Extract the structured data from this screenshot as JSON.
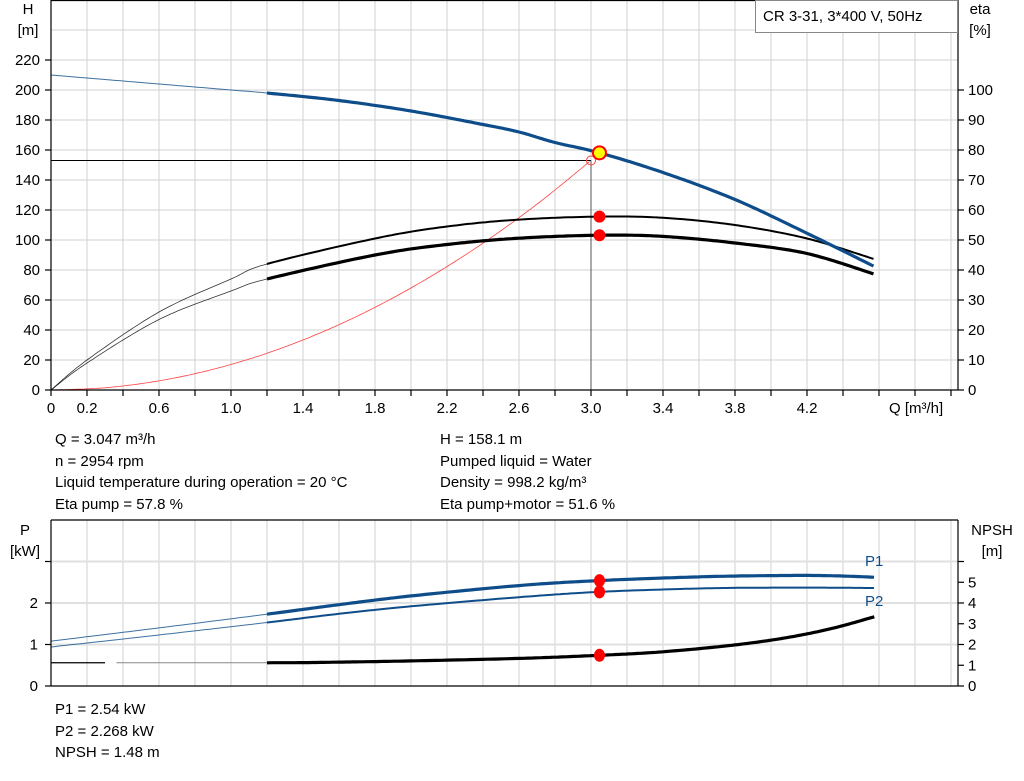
{
  "colors": {
    "head": "#0e4d8a",
    "power": "#0e4d8a",
    "efficiency": "#000000",
    "npsh": "#000000",
    "system": "#ff4040",
    "duty_point_fill": "#ffff00",
    "marker": "#ff0000",
    "grid": "#d0d0d0"
  },
  "chart_data": [
    {
      "type": "line",
      "title": "CR 3-31, 3*400 V, 50Hz",
      "xlabel": "Q [m³/h]",
      "ylabel_left": {
        "name": "H",
        "unit": "[m]"
      },
      "ylabel_right": {
        "name": "eta",
        "unit": "[%]"
      },
      "xlim": [
        0,
        5.04
      ],
      "ylim_left": [
        0,
        260
      ],
      "ylim_right": [
        0,
        130
      ],
      "x_ticks": [
        "0",
        "0.2",
        "0.6",
        "1.0",
        "1.4",
        "1.8",
        "2.2",
        "2.6",
        "3.0",
        "3.4",
        "3.8",
        "4.2"
      ],
      "y_ticks_left": [
        "0",
        "20",
        "40",
        "60",
        "80",
        "100",
        "120",
        "140",
        "160",
        "180",
        "200",
        "220"
      ],
      "y_ticks_right": [
        "0",
        "10",
        "20",
        "30",
        "40",
        "50",
        "60",
        "70",
        "80",
        "90",
        "100"
      ],
      "grid": true,
      "series": [
        {
          "key": "H",
          "axis": "left",
          "x": [
            0,
            0.2,
            0.6,
            1.0,
            1.2,
            1.6,
            2.0,
            2.4,
            2.6,
            2.8,
            3.047,
            3.4,
            3.8,
            4.2,
            4.58
          ],
          "y": [
            210,
            208,
            204,
            200,
            198,
            193,
            186,
            177,
            172,
            165,
            158.1,
            145,
            127,
            104.5,
            82
          ]
        },
        {
          "key": "eta_pump",
          "axis": "right",
          "x": [
            0,
            0.2,
            0.6,
            1.0,
            1.2,
            1.8,
            2.2,
            2.6,
            3.047,
            3.4,
            3.8,
            4.2,
            4.58
          ],
          "y": [
            0,
            10,
            26,
            37,
            42,
            50.5,
            54.5,
            56.8,
            57.8,
            57.4,
            55,
            50.5,
            43.5
          ]
        },
        {
          "key": "eta_pump_motor",
          "axis": "right",
          "x": [
            0,
            0.2,
            0.6,
            1.0,
            1.2,
            1.8,
            2.2,
            2.6,
            3.047,
            3.4,
            3.8,
            4.2,
            4.58
          ],
          "y": [
            0,
            9,
            23.5,
            33,
            37,
            45,
            48.5,
            50.6,
            51.6,
            51.2,
            49,
            45.5,
            38.5
          ]
        },
        {
          "key": "system",
          "axis": "left",
          "x": [
            0,
            0.3,
            0.6,
            0.9,
            1.2,
            1.5,
            1.8,
            2.1,
            2.4,
            2.7,
            3.0
          ],
          "y": [
            0,
            1.5,
            6.1,
            13.8,
            24.5,
            38.3,
            55.1,
            75,
            97.9,
            123.9,
            153
          ]
        }
      ],
      "duty_point": {
        "Q": 3.047,
        "H": 158.1,
        "eta_pump": 57.8,
        "eta_pump_motor": 51.6
      },
      "system_point": {
        "Q": 3.0,
        "H": 153
      }
    },
    {
      "type": "line",
      "xlim": [
        0,
        5.04
      ],
      "ylabel_left": {
        "name": "P",
        "unit": "[kW]"
      },
      "ylabel_right": {
        "name": "NPSH",
        "unit": "[m]"
      },
      "ylim_left": [
        0,
        3.95
      ],
      "ylim_right": [
        0,
        7.9
      ],
      "y_ticks_left": [
        "0",
        "1",
        "2",
        ""
      ],
      "y_ticks_right": [
        "0",
        "1",
        "2",
        "3",
        "4",
        "5",
        ""
      ],
      "grid": true,
      "series": [
        {
          "key": "P1",
          "name": "P1",
          "axis": "left",
          "x": [
            0,
            0.6,
            1.2,
            1.6,
            2.0,
            2.6,
            3.047,
            3.6,
            4.0,
            4.3,
            4.58
          ],
          "y": [
            1.08,
            1.4,
            1.73,
            1.96,
            2.17,
            2.42,
            2.54,
            2.63,
            2.66,
            2.66,
            2.62
          ]
        },
        {
          "key": "P2",
          "name": "P2",
          "axis": "left",
          "x": [
            0,
            0.6,
            1.2,
            1.6,
            2.0,
            2.6,
            3.047,
            3.6,
            4.0,
            4.3,
            4.58
          ],
          "y": [
            0.94,
            1.23,
            1.53,
            1.74,
            1.92,
            2.14,
            2.268,
            2.35,
            2.37,
            2.37,
            2.36
          ]
        },
        {
          "key": "NPSH",
          "axis": "right",
          "x": [
            0,
            1.2,
            1.6,
            2.0,
            2.6,
            3.047,
            3.4,
            3.8,
            4.1,
            4.35,
            4.58
          ],
          "y": [
            1.12,
            1.12,
            1.15,
            1.21,
            1.33,
            1.48,
            1.65,
            1.98,
            2.35,
            2.8,
            3.35
          ]
        }
      ],
      "duty_point": {
        "Q": 3.047,
        "P1": 2.54,
        "P2": 2.268,
        "NPSH": 1.48
      }
    }
  ],
  "results_top": {
    "left": [
      "Q = 3.047 m³/h",
      "n = 2954 rpm",
      "Liquid temperature during operation = 20 °C",
      "Eta pump = 57.8 %"
    ],
    "right": [
      "H = 158.1 m",
      "Pumped liquid = Water",
      "Density = 998.2 kg/m³",
      "Eta pump+motor = 51.6 %"
    ]
  },
  "results_bottom": [
    "P1 = 2.54 kW",
    "P2 = 2.268 kW",
    "NPSH = 1.48 m"
  ]
}
